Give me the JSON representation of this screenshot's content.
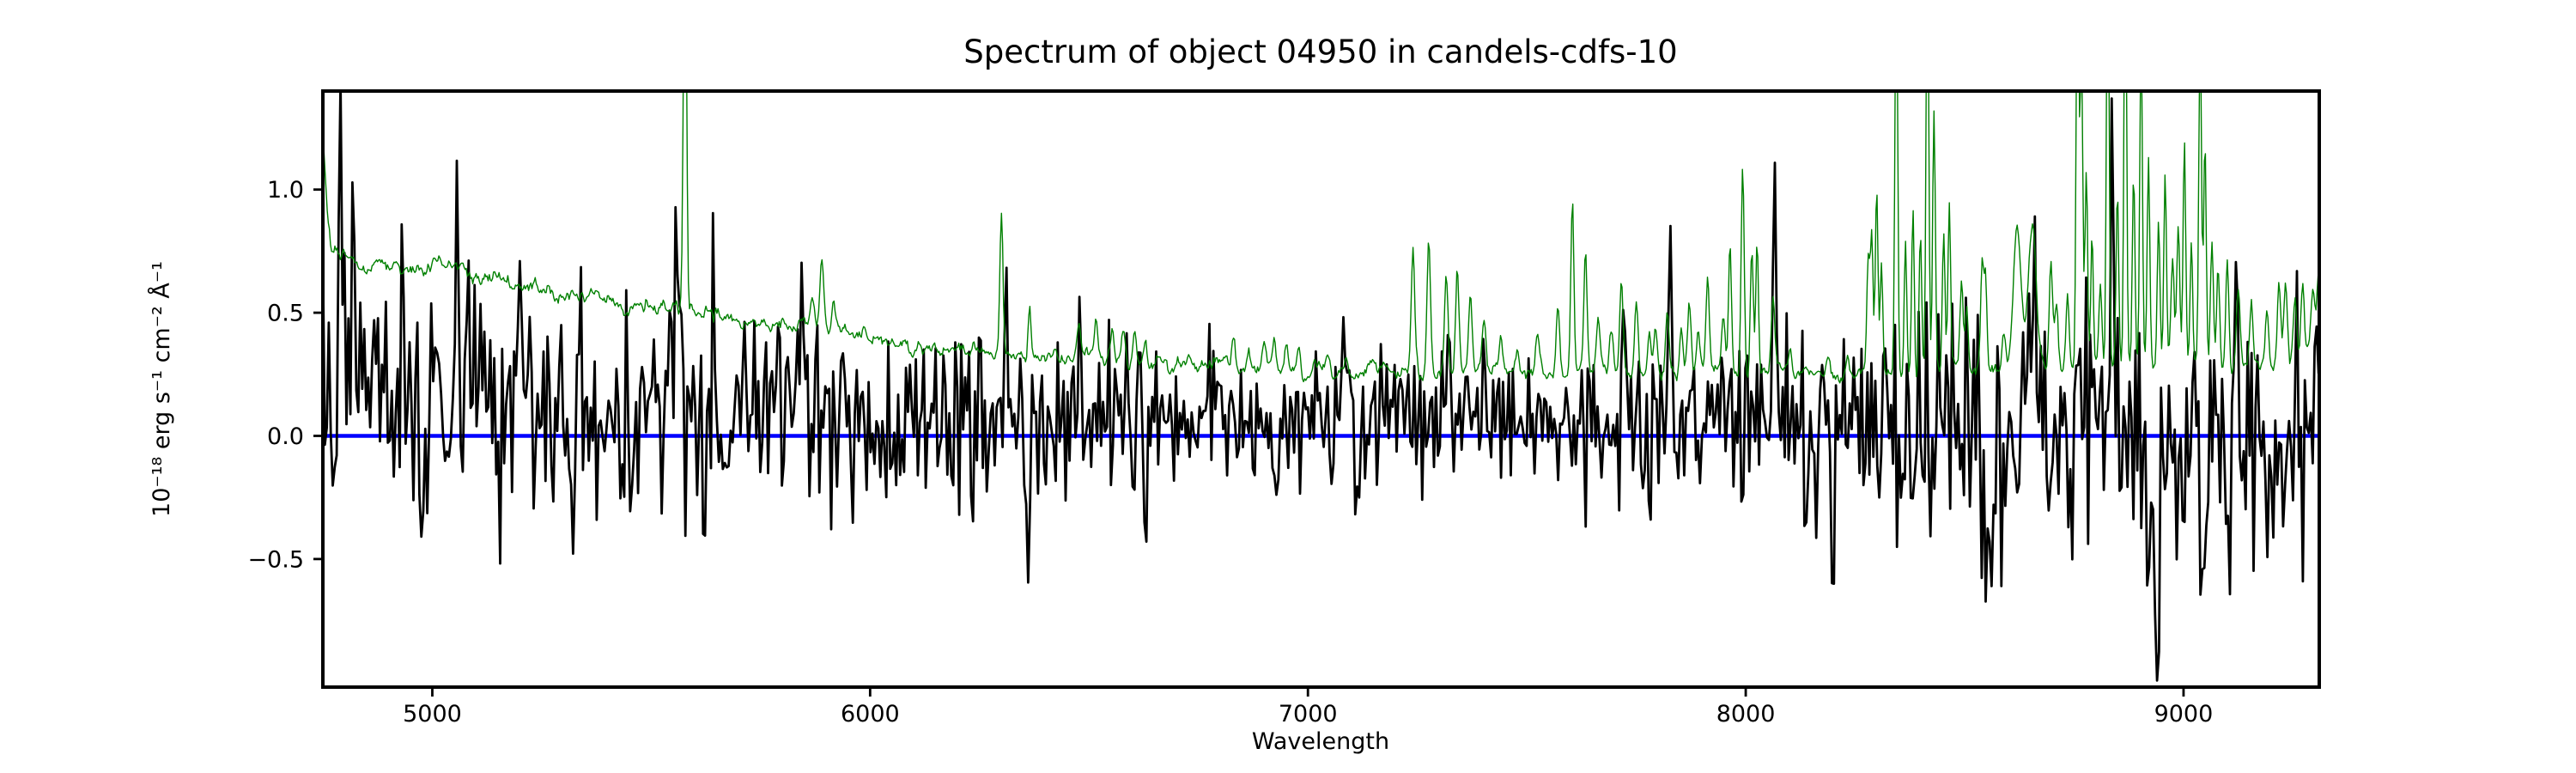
{
  "figure": {
    "background": "#ffffff",
    "spine_color": "#000000"
  },
  "chart_data": {
    "type": "line",
    "title": "Spectrum of object 04950 in candels-cdfs-10",
    "xlabel": "Wavelength",
    "ylabel": "10⁻¹⁸ erg s⁻¹ cm⁻² Å⁻¹",
    "xlim": [
      4750,
      9310
    ],
    "ylim": [
      -1.02,
      1.4
    ],
    "grid": false,
    "legend": "none",
    "xticks": [
      {
        "value": 5000,
        "label": "5000"
      },
      {
        "value": 6000,
        "label": "6000"
      },
      {
        "value": 7000,
        "label": "7000"
      },
      {
        "value": 8000,
        "label": "8000"
      },
      {
        "value": 9000,
        "label": "9000"
      }
    ],
    "yticks": [
      {
        "value": 1.0,
        "label": "1.0"
      },
      {
        "value": 0.5,
        "label": "0.5"
      },
      {
        "value": 0.0,
        "label": "0.0"
      },
      {
        "value": -0.5,
        "label": "−0.5"
      }
    ],
    "series": [
      {
        "name": "zero flux level",
        "role": "hline",
        "color": "#0000ff",
        "linewidth": 4.5,
        "y": 0.0
      },
      {
        "name": "object flux spectrum",
        "role": "noisy_spectrum",
        "color": "#000000",
        "linewidth": 2.8,
        "sample_step": 4.5,
        "seed": 123457,
        "mean_envelope": [
          [
            4750,
            0.21
          ],
          [
            4900,
            0.18
          ],
          [
            5100,
            0.16
          ],
          [
            5300,
            0.14
          ],
          [
            5500,
            0.12
          ],
          [
            5700,
            0.1
          ],
          [
            5900,
            0.09
          ],
          [
            6100,
            0.08
          ],
          [
            6300,
            0.075
          ],
          [
            6500,
            0.07
          ],
          [
            6750,
            0.06
          ],
          [
            7000,
            0.05
          ],
          [
            7250,
            0.05
          ],
          [
            7500,
            0.05
          ],
          [
            7750,
            0.055
          ],
          [
            8000,
            0.06
          ],
          [
            8250,
            0.05
          ],
          [
            8500,
            0.04
          ],
          [
            8750,
            0.03
          ],
          [
            9000,
            0.02
          ],
          [
            9310,
            0.02
          ]
        ],
        "noise_sigma_envelope": [
          [
            4750,
            0.3
          ],
          [
            4900,
            0.27
          ],
          [
            5100,
            0.25
          ],
          [
            5300,
            0.23
          ],
          [
            5600,
            0.21
          ],
          [
            5900,
            0.2
          ],
          [
            6200,
            0.19
          ],
          [
            6500,
            0.17
          ],
          [
            6800,
            0.15
          ],
          [
            7100,
            0.14
          ],
          [
            7400,
            0.14
          ],
          [
            7700,
            0.16
          ],
          [
            8000,
            0.18
          ],
          [
            8300,
            0.22
          ],
          [
            8600,
            0.26
          ],
          [
            8900,
            0.28
          ],
          [
            9100,
            0.27
          ],
          [
            9310,
            0.27
          ]
        ],
        "features": [
          [
            4791,
            1.0,
            4
          ],
          [
            4812,
            0.65,
            4
          ],
          [
            4835,
            0.5,
            4
          ],
          [
            4978,
            -0.8,
            4
          ],
          [
            5056,
            0.7,
            4
          ],
          [
            5082,
            0.55,
            4
          ],
          [
            5155,
            -0.55,
            4
          ],
          [
            5200,
            0.6,
            4
          ],
          [
            5292,
            0.52,
            4
          ],
          [
            5332,
            0.45,
            4
          ],
          [
            5430,
            -0.55,
            4
          ],
          [
            5560,
            0.7,
            4
          ],
          [
            5620,
            -0.45,
            4
          ],
          [
            5642,
            0.45,
            4
          ],
          [
            5840,
            0.42,
            4
          ],
          [
            5990,
            -0.48,
            4
          ],
          [
            6310,
            0.45,
            4
          ],
          [
            6360,
            -0.7,
            4
          ],
          [
            6480,
            0.45,
            4
          ],
          [
            6630,
            -0.5,
            4
          ],
          [
            7085,
            0.42,
            4
          ],
          [
            7320,
            0.45,
            4
          ],
          [
            7722,
            0.62,
            4
          ],
          [
            7826,
            0.45,
            4
          ],
          [
            8065,
            0.85,
            4
          ],
          [
            8200,
            -0.45,
            4
          ],
          [
            8320,
            0.55,
            4
          ],
          [
            8555,
            -0.72,
            4
          ],
          [
            8660,
            0.58,
            4
          ],
          [
            8838,
            0.95,
            4
          ],
          [
            8940,
            -0.82,
            4
          ],
          [
            9040,
            -0.5,
            4
          ],
          [
            9120,
            0.42,
            4
          ],
          [
            9200,
            -0.45,
            4
          ],
          [
            9260,
            0.4,
            4
          ]
        ]
      },
      {
        "name": "noise / sky spectrum",
        "role": "sky_spectrum",
        "color": "#008000",
        "linewidth": 1.4,
        "sample_step": 2.5,
        "seed": 777,
        "wiggle_amp": 0.016,
        "baseline": [
          [
            4750,
            1.28
          ],
          [
            4754,
            1.1
          ],
          [
            4760,
            0.9
          ],
          [
            4768,
            0.78
          ],
          [
            4780,
            0.735
          ],
          [
            4800,
            0.72
          ],
          [
            4850,
            0.705
          ],
          [
            4900,
            0.695
          ],
          [
            4950,
            0.685
          ],
          [
            5000,
            0.67
          ],
          [
            5050,
            0.66
          ],
          [
            5100,
            0.65
          ],
          [
            5150,
            0.635
          ],
          [
            5200,
            0.615
          ],
          [
            5250,
            0.6
          ],
          [
            5300,
            0.585
          ],
          [
            5350,
            0.57
          ],
          [
            5400,
            0.558
          ],
          [
            5450,
            0.545
          ],
          [
            5500,
            0.535
          ],
          [
            5550,
            0.52
          ],
          [
            5600,
            0.505
          ],
          [
            5650,
            0.49
          ],
          [
            5700,
            0.478
          ],
          [
            5750,
            0.465
          ],
          [
            5800,
            0.455
          ],
          [
            5850,
            0.445
          ],
          [
            5900,
            0.432
          ],
          [
            5950,
            0.405
          ],
          [
            6000,
            0.385
          ],
          [
            6050,
            0.37
          ],
          [
            6100,
            0.362
          ],
          [
            6150,
            0.355
          ],
          [
            6200,
            0.348
          ],
          [
            6250,
            0.34
          ],
          [
            6300,
            0.335
          ],
          [
            6350,
            0.33
          ],
          [
            6400,
            0.325
          ],
          [
            6450,
            0.32
          ],
          [
            6500,
            0.315
          ],
          [
            6550,
            0.31
          ],
          [
            6600,
            0.305
          ],
          [
            6700,
            0.295
          ],
          [
            6800,
            0.287
          ],
          [
            6900,
            0.28
          ],
          [
            7000,
            0.272
          ],
          [
            7100,
            0.266
          ],
          [
            7200,
            0.264
          ],
          [
            7300,
            0.26
          ],
          [
            7400,
            0.256
          ],
          [
            7500,
            0.252
          ],
          [
            7600,
            0.25
          ],
          [
            7700,
            0.25
          ],
          [
            7800,
            0.252
          ],
          [
            7900,
            0.255
          ],
          [
            8000,
            0.255
          ],
          [
            8100,
            0.25
          ],
          [
            8200,
            0.25
          ],
          [
            8300,
            0.255
          ],
          [
            8400,
            0.26
          ],
          [
            8500,
            0.262
          ],
          [
            8600,
            0.267
          ],
          [
            8700,
            0.27
          ],
          [
            8800,
            0.272
          ],
          [
            8900,
            0.276
          ],
          [
            9000,
            0.29
          ],
          [
            9100,
            0.28
          ],
          [
            9160,
            0.276
          ],
          [
            9220,
            0.282
          ],
          [
            9270,
            0.3
          ],
          [
            9310,
            0.36
          ]
        ],
        "sky_lines": [
          [
            5577,
            1.8,
            3.5
          ],
          [
            5868,
            0.09,
            4
          ],
          [
            5890,
            0.3,
            4.5
          ],
          [
            5917,
            0.12,
            4
          ],
          [
            6236,
            0.06,
            4
          ],
          [
            6300,
            0.56,
            3.5
          ],
          [
            6364,
            0.21,
            3.5
          ],
          [
            6478,
            0.13,
            4
          ],
          [
            6516,
            0.16,
            4
          ],
          [
            6554,
            0.13,
            4
          ],
          [
            6578,
            0.14,
            4
          ],
          [
            6604,
            0.11,
            4
          ],
          [
            6628,
            0.08,
            4
          ],
          [
            6830,
            0.14,
            4
          ],
          [
            6865,
            0.08,
            4
          ],
          [
            6900,
            0.07,
            4
          ],
          [
            6924,
            0.1,
            4
          ],
          [
            6950,
            0.08,
            4
          ],
          [
            6979,
            0.11,
            4
          ],
          [
            7046,
            0.08,
            4
          ],
          [
            7087,
            0.06,
            4
          ],
          [
            7150,
            0.05,
            4
          ],
          [
            7240,
            0.46,
            4
          ],
          [
            7276,
            0.56,
            4
          ],
          [
            7316,
            0.4,
            4
          ],
          [
            7341,
            0.44,
            4
          ],
          [
            7371,
            0.33,
            4
          ],
          [
            7402,
            0.23,
            4
          ],
          [
            7440,
            0.12,
            4
          ],
          [
            7480,
            0.08,
            4
          ],
          [
            7524,
            0.16,
            4
          ],
          [
            7571,
            0.3,
            4
          ],
          [
            7604,
            0.7,
            3.5
          ],
          [
            7634,
            0.47,
            3.5
          ],
          [
            7663,
            0.2,
            4
          ],
          [
            7693,
            0.16,
            4
          ],
          [
            7716,
            0.36,
            4
          ],
          [
            7750,
            0.29,
            4
          ],
          [
            7780,
            0.16,
            4
          ],
          [
            7794,
            0.2,
            4
          ],
          [
            7821,
            0.28,
            4
          ],
          [
            7853,
            0.2,
            4
          ],
          [
            7871,
            0.26,
            4
          ],
          [
            7891,
            0.18,
            4
          ],
          [
            7913,
            0.36,
            4
          ],
          [
            7949,
            0.22,
            4
          ],
          [
            7964,
            0.56,
            3.5
          ],
          [
            7993,
            0.88,
            3.5
          ],
          [
            8014,
            0.5,
            3.5
          ],
          [
            8026,
            0.55,
            3
          ],
          [
            8062,
            0.3,
            4
          ],
          [
            8101,
            0.12,
            4
          ],
          [
            8189,
            0.09,
            4
          ],
          [
            8232,
            0.07,
            4
          ],
          [
            8280,
            0.48,
            3.5
          ],
          [
            8288,
            0.55,
            3
          ],
          [
            8299,
            0.78,
            3
          ],
          [
            8310,
            0.48,
            3
          ],
          [
            8344,
            1.8,
            3
          ],
          [
            8365,
            0.58,
            3
          ],
          [
            8382,
            0.7,
            3
          ],
          [
            8399,
            0.56,
            3
          ],
          [
            8415,
            1.8,
            3
          ],
          [
            8430,
            1.05,
            3
          ],
          [
            8452,
            0.56,
            3
          ],
          [
            8465,
            0.64,
            3
          ],
          [
            8493,
            0.36,
            3.5
          ],
          [
            8505,
            0.3,
            3.5
          ],
          [
            8540,
            0.46,
            3.5
          ],
          [
            8548,
            0.4,
            3
          ],
          [
            8589,
            0.18,
            4
          ],
          [
            8620,
            0.56,
            9
          ],
          [
            8655,
            0.6,
            9
          ],
          [
            8697,
            0.42,
            4
          ],
          [
            8710,
            0.25,
            4
          ],
          [
            8735,
            0.3,
            3.5
          ],
          [
            8758,
            1.8,
            3
          ],
          [
            8767,
            1.25,
            3
          ],
          [
            8778,
            0.82,
            3
          ],
          [
            8791,
            0.58,
            3
          ],
          [
            8810,
            0.35,
            3.5
          ],
          [
            8827,
            1.8,
            3
          ],
          [
            8849,
            0.72,
            3
          ],
          [
            8867,
            1.8,
            3
          ],
          [
            8886,
            0.78,
            3
          ],
          [
            8903,
            1.35,
            3
          ],
          [
            8920,
            0.82,
            3
          ],
          [
            8943,
            0.58,
            3
          ],
          [
            8958,
            0.78,
            3
          ],
          [
            8975,
            0.42,
            3.5
          ],
          [
            8988,
            0.56,
            3.5
          ],
          [
            9002,
            0.92,
            3
          ],
          [
            9018,
            0.52,
            3
          ],
          [
            9038,
            1.4,
            3
          ],
          [
            9049,
            0.92,
            3
          ],
          [
            9065,
            0.52,
            3.5
          ],
          [
            9079,
            0.42,
            3.5
          ],
          [
            9100,
            0.46,
            3.5
          ],
          [
            9125,
            0.32,
            4
          ],
          [
            9155,
            0.26,
            4
          ],
          [
            9190,
            0.22,
            4
          ],
          [
            9218,
            0.36,
            4
          ],
          [
            9233,
            0.32,
            4
          ],
          [
            9255,
            0.26,
            4
          ],
          [
            9272,
            0.3,
            4
          ],
          [
            9295,
            0.27,
            4
          ],
          [
            9308,
            0.32,
            4
          ]
        ]
      }
    ]
  }
}
